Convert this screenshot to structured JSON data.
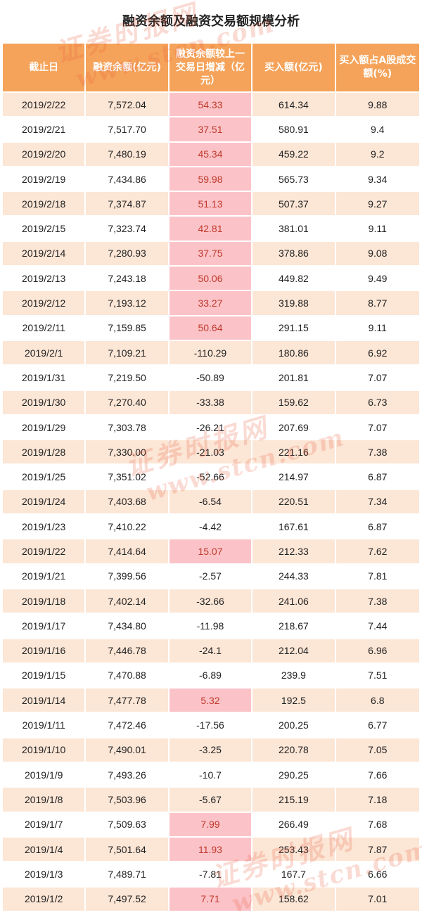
{
  "title": "融资余额及融资交易额规模分析",
  "watermark": {
    "cn": "证券时报网",
    "en": "www.stcn.com"
  },
  "colors": {
    "header": "#f5a35a",
    "row_alt": "#fce6d6",
    "positive_cell": "#fbc3c8"
  },
  "chart_data": {
    "type": "table",
    "columns": [
      "截止日",
      "融资余额(亿元)",
      "融资余额较上一交易日增减（亿元）",
      "买入额(亿元)",
      "买入额占A股成交额(%)"
    ],
    "rows": [
      [
        "2019/2/22",
        "7,572.04",
        "54.33",
        "614.34",
        "9.88"
      ],
      [
        "2019/2/21",
        "7,517.70",
        "37.51",
        "580.91",
        "9.4"
      ],
      [
        "2019/2/20",
        "7,480.19",
        "45.34",
        "459.22",
        "9.2"
      ],
      [
        "2019/2/19",
        "7,434.86",
        "59.98",
        "565.73",
        "9.34"
      ],
      [
        "2019/2/18",
        "7,374.87",
        "51.13",
        "507.37",
        "9.27"
      ],
      [
        "2019/2/15",
        "7,323.74",
        "42.81",
        "381.01",
        "9.11"
      ],
      [
        "2019/2/14",
        "7,280.93",
        "37.75",
        "378.86",
        "9.08"
      ],
      [
        "2019/2/13",
        "7,243.18",
        "50.06",
        "449.82",
        "9.49"
      ],
      [
        "2019/2/12",
        "7,193.12",
        "33.27",
        "319.88",
        "8.77"
      ],
      [
        "2019/2/11",
        "7,159.85",
        "50.64",
        "291.15",
        "9.11"
      ],
      [
        "2019/2/1",
        "7,109.21",
        "-110.29",
        "180.86",
        "6.92"
      ],
      [
        "2019/1/31",
        "7,219.50",
        "-50.89",
        "201.81",
        "7.07"
      ],
      [
        "2019/1/30",
        "7,270.40",
        "-33.38",
        "159.62",
        "6.73"
      ],
      [
        "2019/1/29",
        "7,303.78",
        "-26.21",
        "207.69",
        "7.07"
      ],
      [
        "2019/1/28",
        "7,330.00",
        "-21.03",
        "221.16",
        "7.38"
      ],
      [
        "2019/1/25",
        "7,351.02",
        "-52.66",
        "214.97",
        "6.87"
      ],
      [
        "2019/1/24",
        "7,403.68",
        "-6.54",
        "220.51",
        "7.34"
      ],
      [
        "2019/1/23",
        "7,410.22",
        "-4.42",
        "167.61",
        "6.87"
      ],
      [
        "2019/1/22",
        "7,414.64",
        "15.07",
        "212.33",
        "7.62"
      ],
      [
        "2019/1/21",
        "7,399.56",
        "-2.57",
        "244.33",
        "7.81"
      ],
      [
        "2019/1/18",
        "7,402.14",
        "-32.66",
        "241.06",
        "7.38"
      ],
      [
        "2019/1/17",
        "7,434.80",
        "-11.98",
        "218.67",
        "7.44"
      ],
      [
        "2019/1/16",
        "7,446.78",
        "-24.1",
        "212.04",
        "6.96"
      ],
      [
        "2019/1/15",
        "7,470.88",
        "-6.89",
        "239.9",
        "7.51"
      ],
      [
        "2019/1/14",
        "7,477.78",
        "5.32",
        "192.5",
        "6.8"
      ],
      [
        "2019/1/11",
        "7,472.46",
        "-17.56",
        "200.25",
        "6.77"
      ],
      [
        "2019/1/10",
        "7,490.01",
        "-3.25",
        "220.78",
        "7.05"
      ],
      [
        "2019/1/9",
        "7,493.26",
        "-10.7",
        "290.25",
        "7.66"
      ],
      [
        "2019/1/8",
        "7,503.96",
        "-5.67",
        "215.19",
        "7.18"
      ],
      [
        "2019/1/7",
        "7,509.63",
        "7.99",
        "266.49",
        "7.68"
      ],
      [
        "2019/1/4",
        "7,501.64",
        "11.93",
        "253.43",
        "7.87"
      ],
      [
        "2019/1/3",
        "7,489.71",
        "-7.81",
        "167.7",
        "6.66"
      ],
      [
        "2019/1/2",
        "7,497.52",
        "7.71",
        "158.62",
        "7.01"
      ]
    ]
  }
}
